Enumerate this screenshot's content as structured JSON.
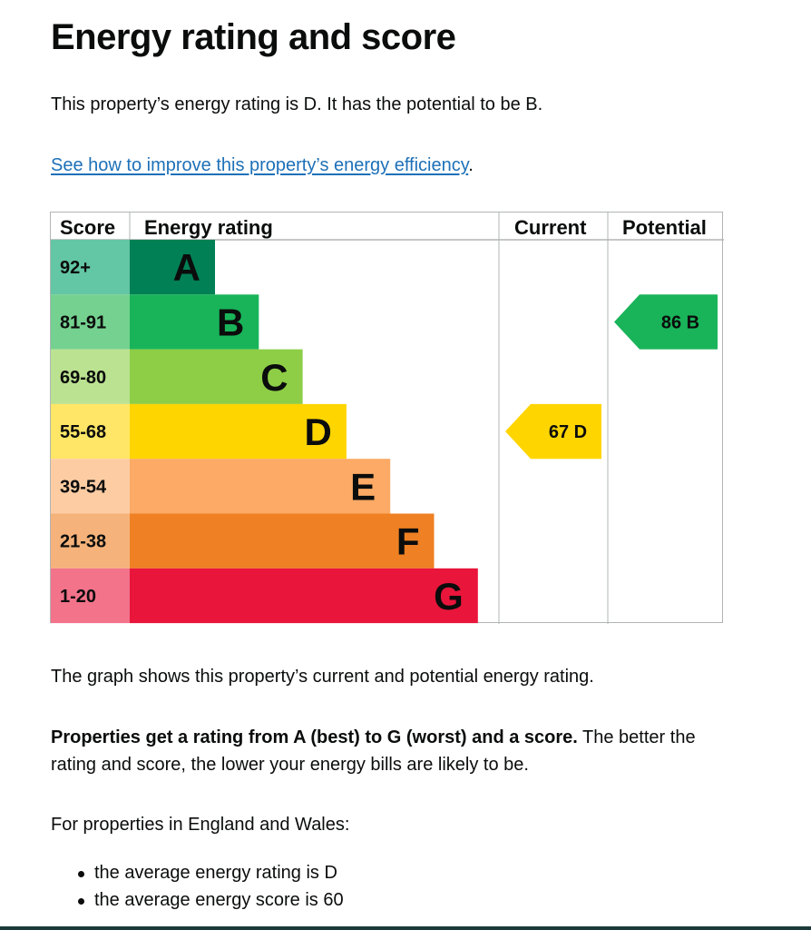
{
  "heading": "Energy rating and score",
  "intro": "This property’s energy rating is D. It has the potential to be B.",
  "improve_link": "See how to improve this property’s energy efficiency",
  "improve_link_suffix": ".",
  "chart_data": {
    "type": "table",
    "columns": {
      "score": "Score",
      "rating": "Energy rating",
      "current": "Current",
      "potential": "Potential"
    },
    "bands": [
      {
        "letter": "A",
        "score_range": "92+",
        "color": "#008054",
        "score_color": "#63c6a4"
      },
      {
        "letter": "B",
        "score_range": "81-91",
        "color": "#19b459",
        "score_color": "#75d18f"
      },
      {
        "letter": "C",
        "score_range": "69-80",
        "color": "#8dce46",
        "score_color": "#bbe291"
      },
      {
        "letter": "D",
        "score_range": "55-68",
        "color": "#ffd500",
        "score_color": "#ffe666"
      },
      {
        "letter": "E",
        "score_range": "39-54",
        "color": "#fcaa65",
        "score_color": "#fdcca3"
      },
      {
        "letter": "F",
        "score_range": "21-38",
        "color": "#ef8023",
        "score_color": "#f5b37b"
      },
      {
        "letter": "G",
        "score_range": "1-20",
        "color": "#e9153b",
        "score_color": "#f2738a"
      }
    ],
    "current": {
      "score": 67,
      "letter": "D",
      "label": "67  D"
    },
    "potential": {
      "score": 86,
      "letter": "B",
      "label": "86  B"
    }
  },
  "graph_caption": "The graph shows this property’s current and potential energy rating.",
  "ratings_bold": "Properties get a rating from A (best) to G (worst) and a score.",
  "ratings_rest": " The better the rating and score, the lower your energy bills are likely to be.",
  "average_intro": "For properties in England and Wales:",
  "average_items": [
    "the average energy rating is D",
    "the average energy score is 60"
  ]
}
